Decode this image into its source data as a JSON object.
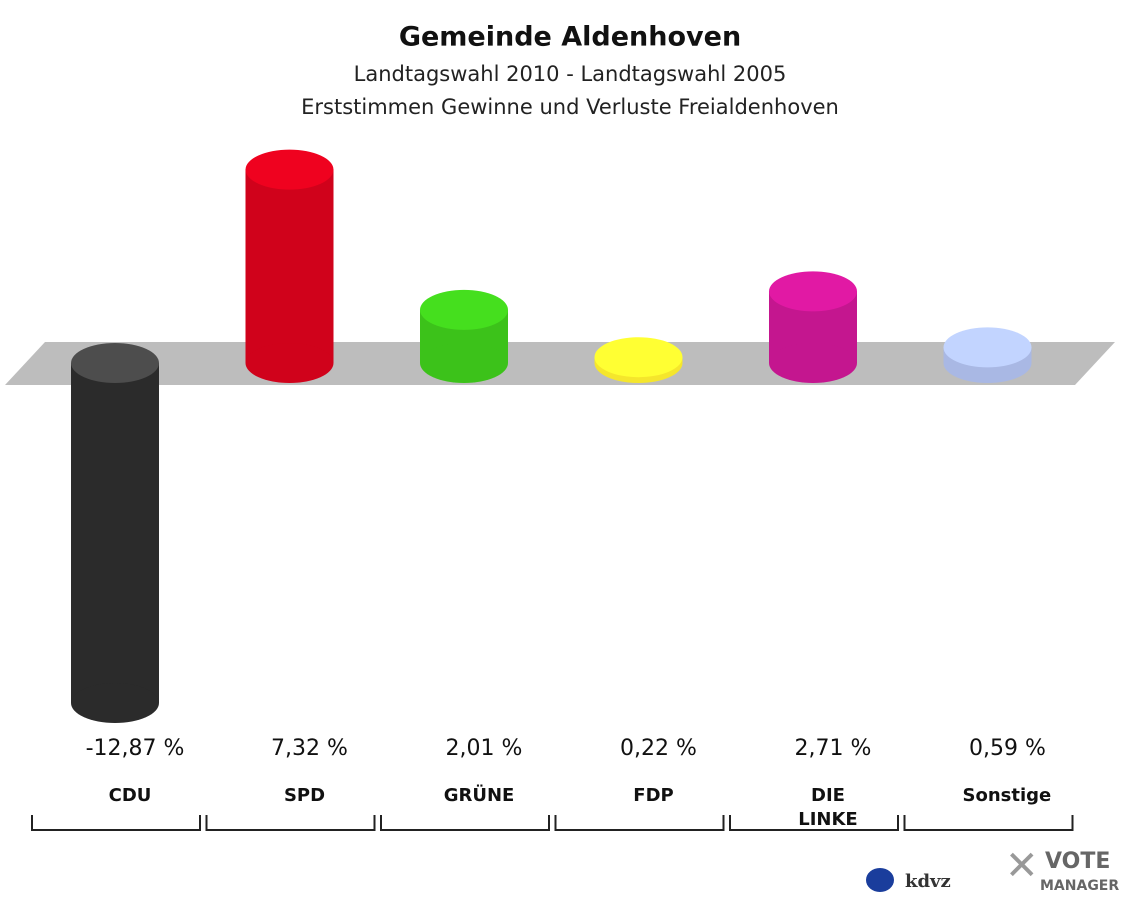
{
  "chart_data": {
    "type": "bar",
    "title": "Gemeinde Aldenhoven",
    "subtitle": [
      "Landtagswahl 2010 - Landtagswahl 2005",
      "Erststimmen Gewinne und Verluste Freialdenhoven"
    ],
    "categories": [
      "CDU",
      "SPD",
      "GRÜNE",
      "FDP",
      "DIE LINKE",
      "Sonstige"
    ],
    "values": [
      -12.87,
      7.32,
      2.01,
      0.22,
      2.71,
      0.59
    ],
    "value_labels": [
      "-12,87 %",
      "7,32 %",
      "2,01 %",
      "0,22 %",
      "2,71 %",
      "0,59 %"
    ],
    "colors": [
      "#2b2b2b",
      "#d0021b",
      "#3cc21a",
      "#f5e62c",
      "#c4168f",
      "#a9b8e4"
    ]
  },
  "footer": {
    "logo_left": "kdvz",
    "logo_right": [
      "VOTE",
      "MANAGER"
    ]
  }
}
